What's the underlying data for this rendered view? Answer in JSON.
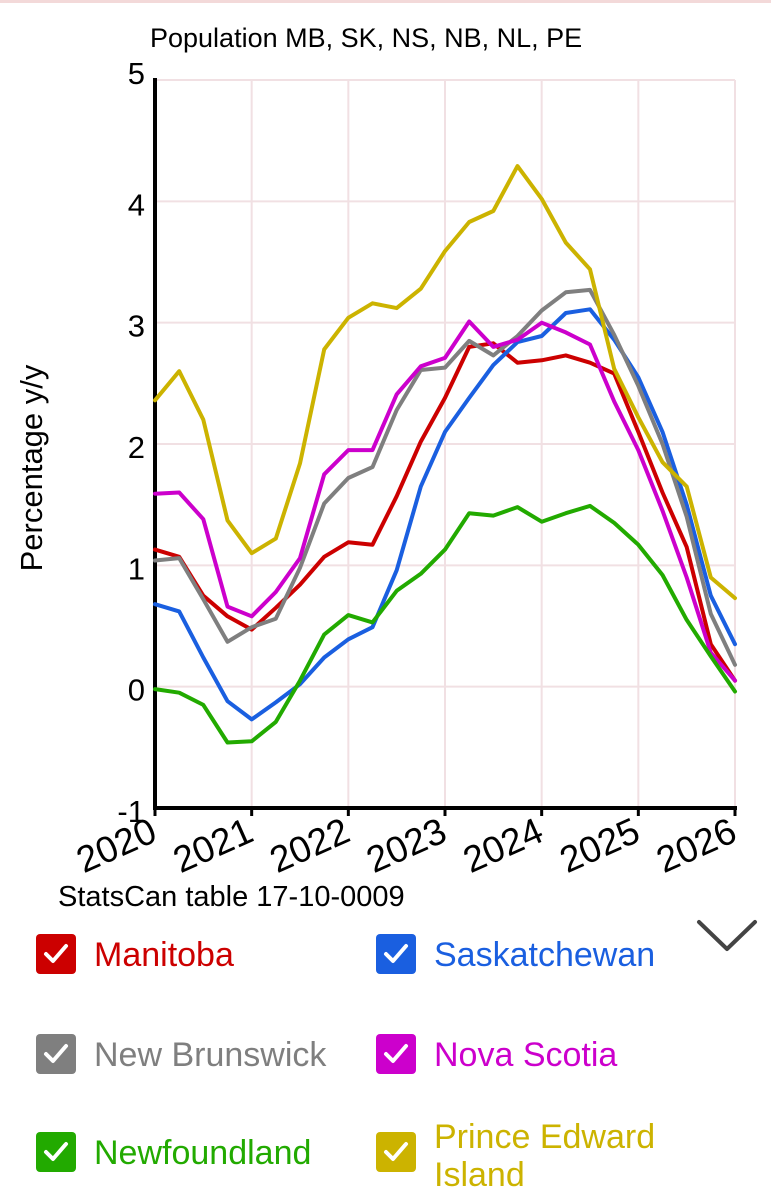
{
  "chart_data": {
    "type": "line",
    "title": "Population MB, SK, NS, NB, NL, PE",
    "ylabel": "Percentage y/y",
    "xlabel": "",
    "source": "StatsCan table 17-10-0009",
    "ylim": [
      -1,
      5
    ],
    "xlim": [
      2020,
      2026
    ],
    "y_ticks": [
      "5",
      "4",
      "3",
      "2",
      "1",
      "0",
      "-1"
    ],
    "x_ticks": [
      "2020",
      "2021",
      "2022",
      "2023",
      "2024",
      "2025",
      "2026"
    ],
    "grid": true,
    "x": [
      2020.0,
      2020.25,
      2020.5,
      2020.75,
      2021.0,
      2021.25,
      2021.5,
      2021.75,
      2022.0,
      2022.25,
      2022.5,
      2022.75,
      2023.0,
      2023.25,
      2023.5,
      2023.75,
      2024.0,
      2024.25,
      2024.5,
      2024.75,
      2025.0,
      2025.25,
      2025.5,
      2025.75,
      2026.0
    ],
    "series": [
      {
        "name": "Manitoba",
        "color": "#cc0000",
        "values": [
          1.13,
          1.07,
          0.75,
          0.58,
          0.47,
          0.65,
          0.84,
          1.07,
          1.19,
          1.17,
          1.57,
          2.02,
          2.38,
          2.8,
          2.83,
          2.67,
          2.69,
          2.73,
          2.67,
          2.58,
          2.1,
          1.6,
          1.15,
          0.35,
          0.05
        ]
      },
      {
        "name": "Saskatchewan",
        "color": "#1a5fe0",
        "values": [
          0.68,
          0.62,
          0.24,
          -0.12,
          -0.27,
          -0.13,
          0.02,
          0.24,
          0.39,
          0.49,
          0.96,
          1.65,
          2.1,
          2.38,
          2.65,
          2.84,
          2.89,
          3.08,
          3.11,
          2.86,
          2.55,
          2.1,
          1.5,
          0.75,
          0.35
        ]
      },
      {
        "name": "New Brunswick",
        "color": "#7f7f7f",
        "values": [
          1.04,
          1.06,
          0.72,
          0.37,
          0.49,
          0.56,
          0.98,
          1.51,
          1.72,
          1.81,
          2.28,
          2.61,
          2.63,
          2.85,
          2.73,
          2.89,
          3.1,
          3.25,
          3.27,
          2.9,
          2.48,
          2.0,
          1.4,
          0.6,
          0.18
        ]
      },
      {
        "name": "Nova Scotia",
        "color": "#cc00cc",
        "values": [
          1.59,
          1.6,
          1.38,
          0.66,
          0.58,
          0.78,
          1.06,
          1.75,
          1.95,
          1.95,
          2.41,
          2.64,
          2.71,
          3.01,
          2.8,
          2.86,
          3.0,
          2.92,
          2.82,
          2.35,
          1.95,
          1.45,
          0.9,
          0.28,
          0.05
        ]
      },
      {
        "name": "Newfoundland",
        "color": "#22aa00",
        "values": [
          -0.02,
          -0.05,
          -0.15,
          -0.46,
          -0.45,
          -0.29,
          0.05,
          0.43,
          0.59,
          0.53,
          0.79,
          0.93,
          1.13,
          1.43,
          1.41,
          1.48,
          1.36,
          1.43,
          1.49,
          1.35,
          1.17,
          0.92,
          0.55,
          0.25,
          -0.04
        ]
      },
      {
        "name": "Prince Edward Island",
        "color": "#ccb300",
        "values": [
          2.36,
          2.6,
          2.2,
          1.37,
          1.1,
          1.22,
          1.84,
          2.78,
          3.04,
          3.16,
          3.12,
          3.28,
          3.59,
          3.83,
          3.92,
          4.29,
          4.02,
          3.66,
          3.44,
          2.62,
          2.22,
          1.85,
          1.65,
          0.9,
          0.73
        ]
      }
    ]
  },
  "legend": {
    "items": [
      {
        "label": "Manitoba",
        "checked": true
      },
      {
        "label": "Saskatchewan",
        "checked": true
      },
      {
        "label": "New Brunswick",
        "checked": true
      },
      {
        "label": "Nova Scotia",
        "checked": true
      },
      {
        "label": "Newfoundland",
        "checked": true
      },
      {
        "label": "Prince Edward Island",
        "checked": true
      }
    ],
    "expand_icon": "chevron-down-icon"
  }
}
